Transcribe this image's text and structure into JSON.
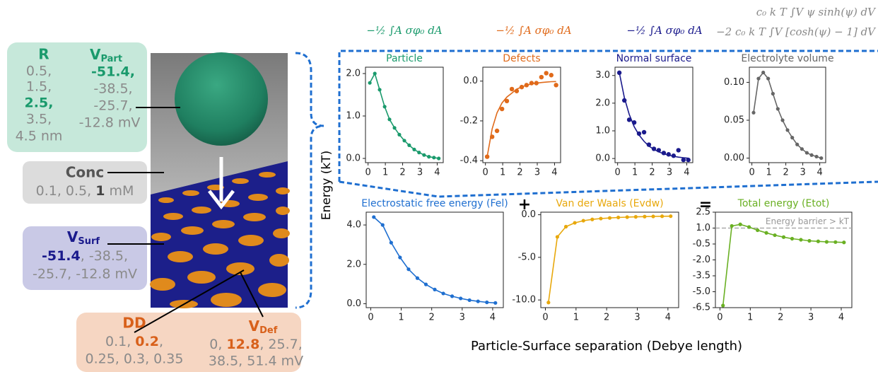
{
  "figure": {
    "ylabel": "Energy (kT)",
    "xlabel": "Particle-Surface separation (Debye length)",
    "operators": [
      "+",
      "="
    ],
    "formulas": [
      "−½ ∫A σφ₀ dA",
      "−½ ∫A σφ₀ dA",
      "−½ ∫A σφ₀ dA",
      "c₀ k T ∫V ψ sinh(ψ) dV",
      "−2 c₀ k T ∫V [cosh(ψ) − 1] dV"
    ]
  },
  "panel": {
    "radius": {
      "name": "R",
      "values": [
        "0.5,",
        "1.5,",
        "2.5,",
        "3.5,",
        "4.5 nm"
      ]
    },
    "v_part": {
      "name": "V",
      "sub": "Part",
      "values": [
        "-51.4,",
        "-38.5,",
        "-25.7,",
        "-12.8 mV"
      ]
    },
    "conc": {
      "name": "Conc",
      "values": [
        "0.1, 0.5, ",
        "1",
        " mM"
      ]
    },
    "v_surf": {
      "name": "V",
      "sub": "Surf",
      "values": [
        "-51.4",
        ", -38.5,",
        "-25.7, -12.8 mV"
      ]
    },
    "dd": {
      "name": "DD",
      "values": [
        "0.1, ",
        "0.2",
        ",",
        "0.25, 0.3, 0.35"
      ]
    },
    "v_def": {
      "name": "V",
      "sub": "Def",
      "values": [
        "0, ",
        "12.8",
        ", 25.7,",
        "38.5, 51.4 mV"
      ]
    }
  },
  "chart_data": [
    {
      "type": "line",
      "title": "Particle",
      "x": [
        0.1,
        0.39,
        0.67,
        0.96,
        1.24,
        1.53,
        1.81,
        2.1,
        2.38,
        2.67,
        2.95,
        3.24,
        3.52,
        3.81,
        4.09
      ],
      "xlim": [
        -0.15,
        4.35
      ],
      "xticks": [
        0,
        1,
        2,
        3,
        4
      ],
      "ylim": [
        -0.1,
        2.15
      ],
      "yticks": [
        {
          "value": 0,
          "label": "0.0"
        },
        {
          "value": 1,
          "label": "1.0"
        },
        {
          "value": 2,
          "label": "2.0"
        }
      ],
      "series": [
        {
          "color": "#1a9a6c",
          "line": true,
          "markers": true,
          "values": [
            1.78,
            2.0,
            1.62,
            1.22,
            0.92,
            0.72,
            0.56,
            0.42,
            0.31,
            0.21,
            0.14,
            0.08,
            0.04,
            0.02,
            0.0
          ]
        }
      ]
    },
    {
      "type": "line",
      "title": "Defects",
      "x": [
        0.1,
        0.39,
        0.67,
        0.96,
        1.24,
        1.53,
        1.81,
        2.1,
        2.38,
        2.67,
        2.95,
        3.24,
        3.52,
        3.81,
        4.09
      ],
      "xlim": [
        -0.15,
        4.35
      ],
      "xticks": [
        0,
        1,
        2,
        3,
        4
      ],
      "ylim": [
        -0.41,
        0.07
      ],
      "yticks": [
        {
          "value": 0,
          "label": "0.0"
        },
        -0.2,
        -0.4
      ],
      "series": [
        {
          "color": "#e06a1a",
          "line": false,
          "markers": true,
          "values": [
            -0.38,
            -0.28,
            -0.25,
            -0.14,
            -0.1,
            -0.04,
            -0.05,
            -0.03,
            -0.02,
            -0.01,
            -0.01,
            0.02,
            0.04,
            0.03,
            -0.02
          ]
        },
        {
          "color": "#e06a1a",
          "line": true,
          "markers": false,
          "values": [
            -0.38,
            -0.24,
            -0.16,
            -0.11,
            -0.08,
            -0.06,
            -0.04,
            -0.03,
            -0.02,
            -0.015,
            -0.01,
            -0.007,
            -0.005,
            -0.003,
            -0.002
          ]
        }
      ]
    },
    {
      "type": "line",
      "title": "Normal surface",
      "x": [
        0.1,
        0.39,
        0.67,
        0.96,
        1.24,
        1.53,
        1.81,
        2.1,
        2.38,
        2.67,
        2.95,
        3.24,
        3.52,
        3.81,
        4.09
      ],
      "xlim": [
        -0.15,
        4.35
      ],
      "xticks": [
        0,
        1,
        2,
        3,
        4
      ],
      "ylim": [
        -0.15,
        3.3
      ],
      "yticks": [
        {
          "value": 0,
          "label": "0.0"
        },
        {
          "value": 1,
          "label": "1.0"
        },
        {
          "value": 2,
          "label": "2.0"
        },
        {
          "value": 3,
          "label": "3.0"
        }
      ],
      "series": [
        {
          "color": "#1a1a8c",
          "line": false,
          "markers": true,
          "values": [
            3.1,
            2.1,
            1.4,
            1.3,
            0.9,
            0.95,
            0.5,
            0.35,
            0.3,
            0.2,
            0.15,
            0.1,
            0.3,
            -0.05,
            -0.05
          ]
        },
        {
          "color": "#1a1a8c",
          "line": true,
          "markers": false,
          "values": [
            3.1,
            2.2,
            1.6,
            1.15,
            0.85,
            0.62,
            0.45,
            0.33,
            0.24,
            0.17,
            0.12,
            0.08,
            0.05,
            0.03,
            0.01
          ]
        }
      ]
    },
    {
      "type": "line",
      "title": "Electrolyte volume",
      "x": [
        0.1,
        0.39,
        0.67,
        0.96,
        1.24,
        1.53,
        1.81,
        2.1,
        2.38,
        2.67,
        2.95,
        3.24,
        3.52,
        3.81,
        4.09
      ],
      "xlim": [
        -0.15,
        4.35
      ],
      "xticks": [
        0,
        1,
        2,
        3,
        4
      ],
      "ylim": [
        -0.006,
        0.12
      ],
      "yticks": [
        {
          "value": 0,
          "label": "0.00"
        },
        0.05,
        {
          "value": 0.1,
          "label": "0.10"
        }
      ],
      "series": [
        {
          "color": "#666666",
          "line": true,
          "markers": true,
          "values": [
            0.06,
            0.105,
            0.113,
            0.105,
            0.085,
            0.065,
            0.05,
            0.037,
            0.027,
            0.018,
            0.012,
            0.007,
            0.004,
            0.002,
            0.0
          ]
        }
      ]
    },
    {
      "type": "line",
      "title": "Electrostatic free energy (Fel)",
      "x": [
        0.1,
        0.39,
        0.67,
        0.96,
        1.24,
        1.53,
        1.81,
        2.1,
        2.38,
        2.67,
        2.95,
        3.24,
        3.52,
        3.81,
        4.09
      ],
      "xlim": [
        -0.15,
        4.35
      ],
      "xticks": [
        0,
        1,
        2,
        3,
        4
      ],
      "ylim": [
        -0.2,
        4.65
      ],
      "yticks": [
        {
          "value": 0,
          "label": "0.0"
        },
        {
          "value": 2,
          "label": "2.0"
        },
        {
          "value": 4,
          "label": "4.0"
        }
      ],
      "series": [
        {
          "color": "#1f6fd0",
          "line": true,
          "markers": true,
          "values": [
            4.4,
            4.0,
            3.1,
            2.35,
            1.75,
            1.3,
            0.98,
            0.72,
            0.52,
            0.38,
            0.27,
            0.18,
            0.12,
            0.07,
            0.04
          ]
        }
      ]
    },
    {
      "type": "line",
      "title": "Van der Waals (Evdw)",
      "x": [
        0.1,
        0.39,
        0.67,
        0.96,
        1.24,
        1.53,
        1.81,
        2.1,
        2.38,
        2.67,
        2.95,
        3.24,
        3.52,
        3.81,
        4.09
      ],
      "xlim": [
        -0.15,
        4.35
      ],
      "xticks": [
        0,
        1,
        2,
        3,
        4
      ],
      "ylim": [
        -10.9,
        0.3
      ],
      "yticks": [
        {
          "value": 0,
          "label": "0.0"
        },
        {
          "value": -5,
          "label": "-5.0"
        },
        {
          "value": -10,
          "label": "-10.0"
        }
      ],
      "series": [
        {
          "color": "#e8a80c",
          "line": true,
          "markers": true,
          "values": [
            -10.3,
            -2.6,
            -1.4,
            -0.95,
            -0.7,
            -0.55,
            -0.45,
            -0.38,
            -0.32,
            -0.28,
            -0.25,
            -0.22,
            -0.2,
            -0.18,
            -0.17
          ]
        }
      ]
    },
    {
      "type": "line",
      "title": "Total energy (Etot)",
      "x": [
        0.1,
        0.39,
        0.67,
        0.96,
        1.24,
        1.53,
        1.81,
        2.1,
        2.38,
        2.67,
        2.95,
        3.24,
        3.52,
        3.81,
        4.09
      ],
      "xlim": [
        -0.15,
        4.35
      ],
      "xticks": [
        0,
        1,
        2,
        3,
        4
      ],
      "ylim": [
        -6.5,
        2.5
      ],
      "yticks": [
        2.5,
        {
          "value": 1,
          "label": "1.0"
        },
        -0.5,
        {
          "value": -2,
          "label": "-2.0"
        },
        -3.5,
        {
          "value": -5,
          "label": "-5.0"
        },
        -6.5
      ],
      "hline": {
        "value": 1,
        "label": "Energy barrier > kT"
      },
      "series": [
        {
          "color": "#6ab023",
          "line": true,
          "markers": true,
          "values": [
            -6.3,
            1.2,
            1.35,
            1.1,
            0.8,
            0.55,
            0.33,
            0.15,
            0.0,
            -0.1,
            -0.2,
            -0.25,
            -0.3,
            -0.32,
            -0.35
          ]
        }
      ]
    }
  ]
}
